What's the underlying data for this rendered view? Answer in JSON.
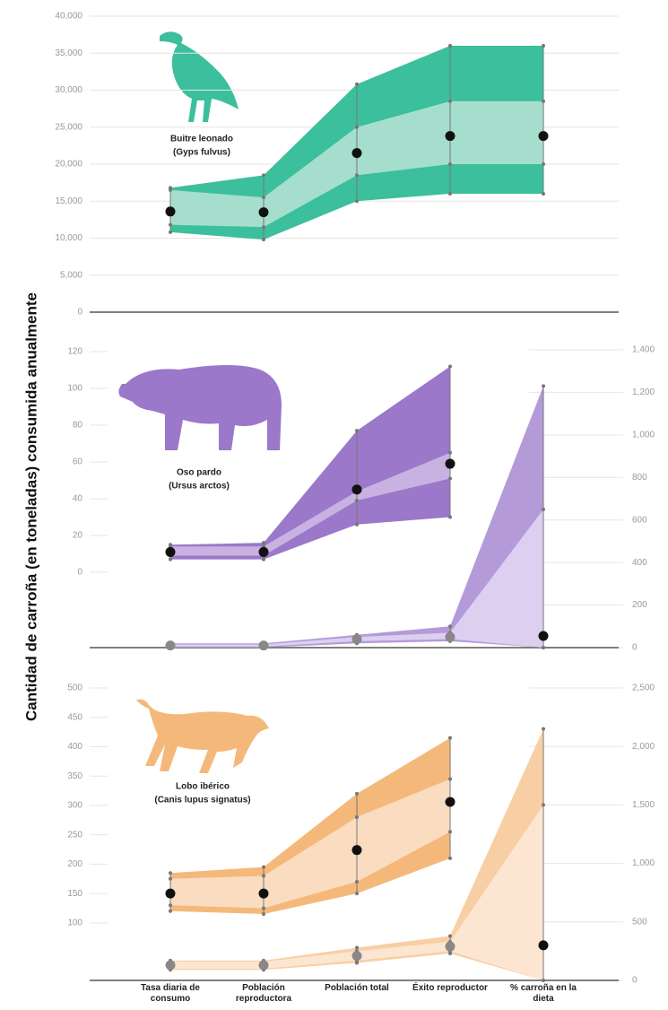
{
  "ylabel": "Cantidad de carroña (en toneladas) consumida anualmente",
  "chart_data": [
    {
      "type": "range-band",
      "title": "Buitre leonado",
      "subtitle": "(Gyps fulvus)",
      "ylim": [
        0,
        40000
      ],
      "yticks": [
        0,
        {
          "value": 5000,
          "label": "5,000"
        },
        {
          "value": 10000,
          "label": "10,000"
        },
        {
          "value": 15000,
          "label": "15,000"
        },
        {
          "value": 20000,
          "label": "20,000"
        },
        {
          "value": 25000,
          "label": "25,000"
        },
        {
          "value": 30000,
          "label": "30,000"
        },
        {
          "value": 35000,
          "label": "35,000"
        },
        {
          "value": 40000,
          "label": "40,000"
        }
      ],
      "grid": true,
      "series": [
        {
          "color": "#3cbf9c",
          "inner_color": "#a6decd",
          "values": [
            13600,
            13500,
            21500,
            23800,
            23800
          ],
          "outer_low": [
            10800,
            9800,
            15000,
            16000,
            16000
          ],
          "outer_high": [
            16800,
            18500,
            30800,
            36000,
            36000
          ],
          "inner_low": [
            11800,
            11500,
            18500,
            20000,
            20000
          ],
          "inner_high": [
            16500,
            15500,
            25000,
            28500,
            28500
          ],
          "point_colors": [
            "#111",
            "#111",
            "#111",
            "#111",
            "#111"
          ]
        }
      ]
    },
    {
      "type": "range-band",
      "title": "Oso pardo",
      "subtitle": "(Ursus arctos)",
      "ylim": [
        -41,
        121
      ],
      "yticks": [
        0,
        20,
        40,
        60,
        80,
        100,
        120
      ],
      "y2lim": [
        0,
        1400
      ],
      "y2ticks": [
        0,
        200,
        400,
        600,
        800,
        {
          "value": 1000,
          "label": "1,000"
        },
        {
          "value": 1200,
          "label": "1,200"
        },
        {
          "value": 1400,
          "label": "1,400"
        }
      ],
      "grid": true,
      "series": [
        {
          "color": "#9b78c9",
          "inner_color": "#c7b2e2",
          "values": [
            11,
            11,
            45,
            59,
            null
          ],
          "outer_low": [
            7,
            7,
            26,
            30,
            null
          ],
          "outer_high": [
            15,
            16,
            77,
            112,
            null
          ],
          "inner_low": [
            9,
            9,
            39,
            51,
            null
          ],
          "inner_high": [
            14,
            14,
            44,
            65,
            null
          ],
          "point_colors": [
            "#111",
            "#111",
            "#111",
            "#111",
            "#111"
          ]
        },
        {
          "axis": "y2",
          "color": "#b49ad8",
          "inner_color": "#dccff0",
          "values": [
            10,
            10,
            40,
            50,
            55
          ],
          "outer_low": [
            0,
            0,
            20,
            30,
            0
          ],
          "outer_high": [
            20,
            20,
            60,
            100,
            1230
          ],
          "inner_low": [
            5,
            5,
            30,
            40,
            0
          ],
          "inner_high": [
            15,
            15,
            50,
            70,
            650
          ],
          "point_colors": [
            "#888",
            "#888",
            "#888",
            "#888",
            "#111"
          ]
        }
      ]
    },
    {
      "type": "range-band",
      "title": "Lobo ibérico",
      "subtitle": "(Canis lupus signatus)",
      "ylim": [
        2,
        500
      ],
      "yticks": [
        100,
        150,
        200,
        250,
        300,
        350,
        400,
        450,
        500
      ],
      "y2lim": [
        0,
        2500
      ],
      "y2ticks": [
        0,
        500,
        {
          "value": 1000,
          "label": "1,000"
        },
        {
          "value": 1500,
          "label": "1,500"
        },
        {
          "value": 2000,
          "label": "2,000"
        },
        {
          "value": 2500,
          "label": "2,500"
        }
      ],
      "grid": true,
      "categories": [
        "Tasa diaria de consumo",
        "Población reproductora",
        "Población total",
        "Éxito reproductor",
        "% carroña en la dieta"
      ],
      "series": [
        {
          "color": "#f4b97a",
          "inner_color": "#fadcc0",
          "values": [
            150,
            150,
            224,
            306,
            null
          ],
          "outer_low": [
            120,
            115,
            150,
            210,
            null
          ],
          "outer_high": [
            185,
            195,
            320,
            415,
            null
          ],
          "inner_low": [
            130,
            125,
            170,
            255,
            null
          ],
          "inner_high": [
            175,
            180,
            280,
            345,
            null
          ],
          "point_colors": [
            "#111",
            "#111",
            "#111",
            "#111",
            "#111"
          ]
        },
        {
          "axis": "y2",
          "color": "#f8cfa4",
          "inner_color": "#fce6d2",
          "values": [
            130,
            130,
            210,
            290,
            300
          ],
          "outer_low": [
            90,
            90,
            150,
            230,
            0
          ],
          "outer_high": [
            170,
            170,
            280,
            380,
            2150
          ],
          "inner_low": [
            100,
            100,
            170,
            250,
            0
          ],
          "inner_high": [
            160,
            160,
            250,
            330,
            1500
          ],
          "point_colors": [
            "#888",
            "#888",
            "#888",
            "#888",
            "#111"
          ]
        }
      ]
    }
  ]
}
